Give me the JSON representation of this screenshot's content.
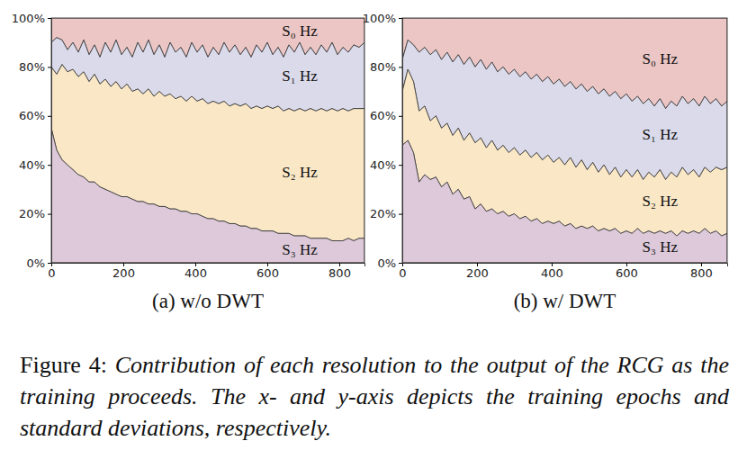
{
  "chart_data": [
    {
      "type": "area",
      "stacked": true,
      "title": "(a) w/o DWT",
      "x": [
        0,
        15,
        30,
        45,
        60,
        75,
        90,
        105,
        120,
        135,
        150,
        165,
        180,
        195,
        210,
        225,
        240,
        255,
        270,
        285,
        300,
        315,
        330,
        345,
        360,
        375,
        390,
        405,
        420,
        435,
        450,
        465,
        480,
        495,
        510,
        525,
        540,
        555,
        570,
        585,
        600,
        615,
        630,
        645,
        660,
        675,
        690,
        705,
        720,
        735,
        750,
        765,
        780,
        795,
        810,
        825,
        840,
        855,
        870
      ],
      "xlim": [
        0,
        870
      ],
      "xticks": [
        0,
        200,
        400,
        600,
        800
      ],
      "ylim": [
        0,
        100
      ],
      "yticks": [
        {
          "value": 0,
          "label": "0%"
        },
        {
          "value": 20,
          "label": "20%"
        },
        {
          "value": 40,
          "label": "40%"
        },
        {
          "value": 60,
          "label": "60%"
        },
        {
          "value": 80,
          "label": "80%"
        },
        {
          "value": 100,
          "label": "100%"
        }
      ],
      "series": [
        {
          "name": "S₀ Hz",
          "color": "#ecc6c5",
          "values": [
            10,
            8,
            9,
            13,
            10,
            14,
            9,
            15,
            11,
            16,
            10,
            14,
            9,
            15,
            12,
            16,
            10,
            14,
            9,
            15,
            11,
            16,
            10,
            14,
            12,
            16,
            10,
            14,
            11,
            16,
            12,
            15,
            10,
            14,
            11,
            15,
            12,
            16,
            11,
            14,
            10,
            15,
            12,
            16,
            11,
            14,
            10,
            15,
            12,
            15,
            11,
            14,
            10,
            15,
            12,
            14,
            11,
            12,
            10
          ]
        },
        {
          "name": "S₁ Hz",
          "color": "#dadaea",
          "values": [
            10,
            15,
            10,
            9,
            11,
            10,
            13,
            11,
            12,
            11,
            15,
            14,
            17,
            14,
            15,
            14,
            19,
            17,
            20,
            17,
            19,
            16,
            21,
            19,
            20,
            18,
            22,
            20,
            22,
            19,
            22,
            20,
            24,
            22,
            24,
            21,
            23,
            21,
            25,
            23,
            26,
            22,
            24,
            22,
            26,
            24,
            27,
            23,
            25,
            23,
            26,
            24,
            27,
            23,
            25,
            24,
            26,
            25,
            27
          ]
        },
        {
          "name": "S₂ Hz",
          "color": "#f9e7c6",
          "values": [
            25,
            31,
            39,
            38,
            41,
            40,
            43,
            41,
            44,
            42,
            45,
            43,
            46,
            44,
            46,
            44,
            46,
            44,
            47,
            44,
            47,
            45,
            47,
            45,
            47,
            45,
            48,
            46,
            48,
            47,
            48,
            48,
            49,
            48,
            49,
            49,
            50,
            49,
            50,
            50,
            51,
            50,
            52,
            50,
            51,
            51,
            52,
            51,
            53,
            52,
            53,
            52,
            54,
            53,
            54,
            52,
            54,
            53,
            53
          ]
        },
        {
          "name": "S₃ Hz",
          "color": "#ddc9d9",
          "values": [
            55,
            46,
            42,
            40,
            38,
            36,
            35,
            33,
            33,
            31,
            30,
            29,
            28,
            27,
            27,
            26,
            25,
            25,
            24,
            24,
            23,
            23,
            22,
            22,
            21,
            21,
            20,
            20,
            19,
            18,
            18,
            17,
            17,
            16,
            16,
            15,
            15,
            14,
            14,
            13,
            13,
            13,
            12,
            12,
            12,
            11,
            11,
            11,
            10,
            10,
            10,
            10,
            9,
            9,
            9,
            10,
            9,
            10,
            10
          ]
        }
      ]
    },
    {
      "type": "area",
      "stacked": true,
      "title": "(b) w/ DWT",
      "x": [
        0,
        15,
        30,
        45,
        60,
        75,
        90,
        105,
        120,
        135,
        150,
        165,
        180,
        195,
        210,
        225,
        240,
        255,
        270,
        285,
        300,
        315,
        330,
        345,
        360,
        375,
        390,
        405,
        420,
        435,
        450,
        465,
        480,
        495,
        510,
        525,
        540,
        555,
        570,
        585,
        600,
        615,
        630,
        645,
        660,
        675,
        690,
        705,
        720,
        735,
        750,
        765,
        780,
        795,
        810,
        825,
        840,
        855,
        870
      ],
      "xlim": [
        0,
        870
      ],
      "xticks": [
        0,
        200,
        400,
        600,
        800
      ],
      "ylim": [
        0,
        100
      ],
      "yticks": [
        {
          "value": 0,
          "label": "0%"
        },
        {
          "value": 20,
          "label": "20%"
        },
        {
          "value": 40,
          "label": "40%"
        },
        {
          "value": 60,
          "label": "60%"
        },
        {
          "value": 80,
          "label": "80%"
        },
        {
          "value": 100,
          "label": "100%"
        }
      ],
      "series": [
        {
          "name": "S₀ Hz",
          "color": "#ecc6c5",
          "values": [
            17,
            9,
            11,
            14,
            12,
            15,
            13,
            17,
            14,
            18,
            15,
            19,
            16,
            20,
            17,
            21,
            18,
            22,
            20,
            23,
            21,
            24,
            22,
            25,
            23,
            26,
            24,
            27,
            25,
            28,
            26,
            29,
            27,
            30,
            28,
            31,
            29,
            32,
            30,
            33,
            31,
            34,
            32,
            35,
            33,
            36,
            33,
            37,
            34,
            36,
            32,
            35,
            33,
            36,
            32,
            35,
            33,
            36,
            34
          ]
        },
        {
          "name": "S₁ Hz",
          "color": "#dadaea",
          "values": [
            13,
            12,
            15,
            24,
            24,
            27,
            27,
            28,
            29,
            30,
            30,
            31,
            31,
            31,
            32,
            32,
            32,
            32,
            32,
            32,
            32,
            32,
            32,
            32,
            32,
            32,
            32,
            32,
            32,
            32,
            31,
            32,
            31,
            32,
            31,
            32,
            31,
            32,
            31,
            32,
            31,
            31,
            30,
            31,
            30,
            29,
            29,
            29,
            29,
            29,
            29,
            29,
            29,
            29,
            29,
            28,
            28,
            26,
            27
          ]
        },
        {
          "name": "S₂ Hz",
          "color": "#f9e7c6",
          "values": [
            22,
            29,
            29,
            29,
            28,
            24,
            25,
            24,
            24,
            24,
            25,
            24,
            26,
            27,
            27,
            26,
            28,
            26,
            27,
            26,
            27,
            26,
            27,
            26,
            27,
            26,
            27,
            25,
            26,
            25,
            27,
            25,
            27,
            24,
            26,
            24,
            26,
            23,
            25,
            23,
            25,
            23,
            24,
            22,
            24,
            23,
            25,
            22,
            24,
            24,
            26,
            24,
            25,
            23,
            25,
            25,
            26,
            27,
            27
          ]
        },
        {
          "name": "S₃ Hz",
          "color": "#ddc9d9",
          "values": [
            48,
            50,
            45,
            33,
            36,
            34,
            35,
            31,
            33,
            28,
            30,
            26,
            27,
            22,
            24,
            21,
            22,
            20,
            21,
            19,
            20,
            18,
            19,
            17,
            18,
            16,
            17,
            16,
            17,
            15,
            16,
            14,
            15,
            14,
            15,
            13,
            14,
            13,
            14,
            12,
            13,
            12,
            14,
            12,
            13,
            12,
            13,
            12,
            13,
            11,
            13,
            12,
            13,
            12,
            14,
            12,
            13,
            11,
            12
          ]
        }
      ]
    }
  ],
  "caption": "Figure 4: Contribution of each resolution to the output of the RCG as the training proceeds. The x- and y-axis depicts the training epochs and standard deviations, respectively."
}
